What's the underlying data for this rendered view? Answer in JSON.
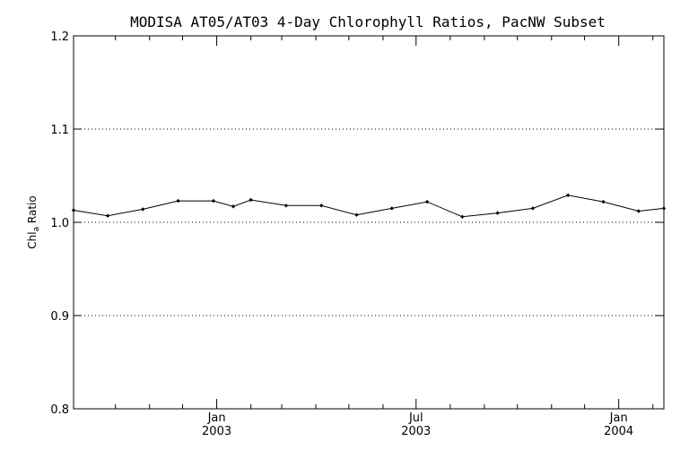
{
  "chart_data": {
    "type": "line",
    "title": "MODISA AT05/AT03 4-Day Chlorophyll Ratios, PacNW Subset",
    "ylabel": {
      "main": "Chl",
      "sub": "a",
      "rest": " Ratio"
    },
    "xlabel": "",
    "ylim": [
      0.8,
      1.2
    ],
    "yticks": [
      0.8,
      0.9,
      1.0,
      1.1,
      1.2
    ],
    "ytick_labels": [
      "0.8",
      "0.9",
      "1.0",
      "1.1",
      "1.2"
    ],
    "y_gridlines": [
      0.9,
      1.0,
      1.1
    ],
    "xlim": [
      "2002-08-24",
      "2004-02-11"
    ],
    "x_major_ticks": [
      {
        "date": "2003-01-01",
        "label_top": "Jan",
        "label_bottom": "2003"
      },
      {
        "date": "2003-07-01",
        "label_top": "Jul",
        "label_bottom": "2003"
      },
      {
        "date": "2004-01-01",
        "label_top": "Jan",
        "label_bottom": "2004"
      }
    ],
    "x_minor_ticks": [
      "2002-10-01",
      "2002-11-01",
      "2002-12-01",
      "2003-02-01",
      "2003-03-01",
      "2003-04-01",
      "2003-05-01",
      "2003-06-01",
      "2003-08-01",
      "2003-09-01",
      "2003-10-01",
      "2003-11-01",
      "2003-12-01",
      "2004-02-01"
    ],
    "grid": "horizontal dotted",
    "series": [
      {
        "x": [
          "2002-08-24",
          "2002-09-24",
          "2002-10-26",
          "2002-11-27",
          "2002-12-29",
          "2003-01-16",
          "2003-02-01",
          "2003-03-05",
          "2003-04-06",
          "2003-05-08",
          "2003-06-09",
          "2003-07-11",
          "2003-08-12",
          "2003-09-13",
          "2003-10-15",
          "2003-11-16",
          "2003-12-18",
          "2004-01-19",
          "2004-02-11"
        ],
        "y": [
          1.013,
          1.007,
          1.014,
          1.023,
          1.023,
          1.017,
          1.024,
          1.018,
          1.018,
          1.008,
          1.015,
          1.022,
          1.006,
          1.01,
          1.015,
          1.029,
          1.022,
          1.012,
          1.015
        ],
        "color": "#000000",
        "marker": "diamond"
      }
    ]
  }
}
